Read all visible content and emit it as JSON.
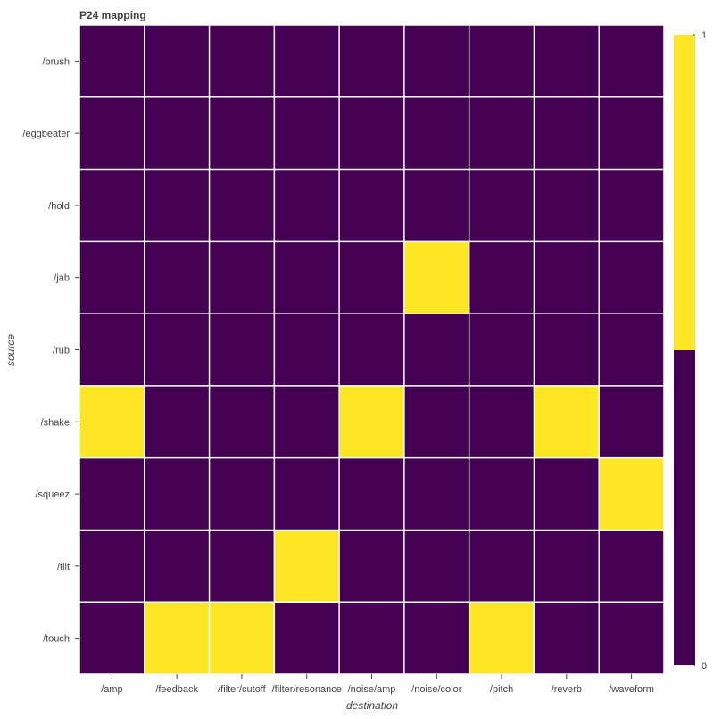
{
  "chart_data": {
    "type": "heatmap",
    "title": "P24 mapping",
    "xlabel": "destination",
    "ylabel": "source",
    "x_categories": [
      "/amp",
      "/feedback",
      "/filter/cutoff",
      "/filter/resonance",
      "/noise/amp",
      "/noise/color",
      "/pitch",
      "/reverb",
      "/waveform"
    ],
    "y_categories": [
      "/brush",
      "/eggbeater",
      "/hold",
      "/jab",
      "/rub",
      "/shake",
      "/squeez",
      "/tilt",
      "/touch"
    ],
    "values": [
      [
        0,
        0,
        0,
        0,
        0,
        0,
        0,
        0,
        0
      ],
      [
        0,
        0,
        0,
        0,
        0,
        0,
        0,
        0,
        0
      ],
      [
        0,
        0,
        0,
        0,
        0,
        0,
        0,
        0,
        0
      ],
      [
        0,
        0,
        0,
        0,
        0,
        1,
        0,
        0,
        0
      ],
      [
        0,
        0,
        0,
        0,
        0,
        0,
        0,
        0,
        0
      ],
      [
        1,
        0,
        0,
        0,
        1,
        0,
        0,
        1,
        0
      ],
      [
        0,
        0,
        0,
        0,
        0,
        0,
        0,
        0,
        1
      ],
      [
        0,
        0,
        0,
        1,
        0,
        0,
        0,
        0,
        0
      ],
      [
        0,
        1,
        1,
        0,
        0,
        0,
        1,
        0,
        0
      ]
    ],
    "colorbar": {
      "range": [
        0,
        1
      ],
      "tick_labels": [
        "0",
        "1"
      ],
      "low_color": "#440154",
      "high_color": "#fde725"
    },
    "grid_color": "#ffffff",
    "grid": true
  }
}
